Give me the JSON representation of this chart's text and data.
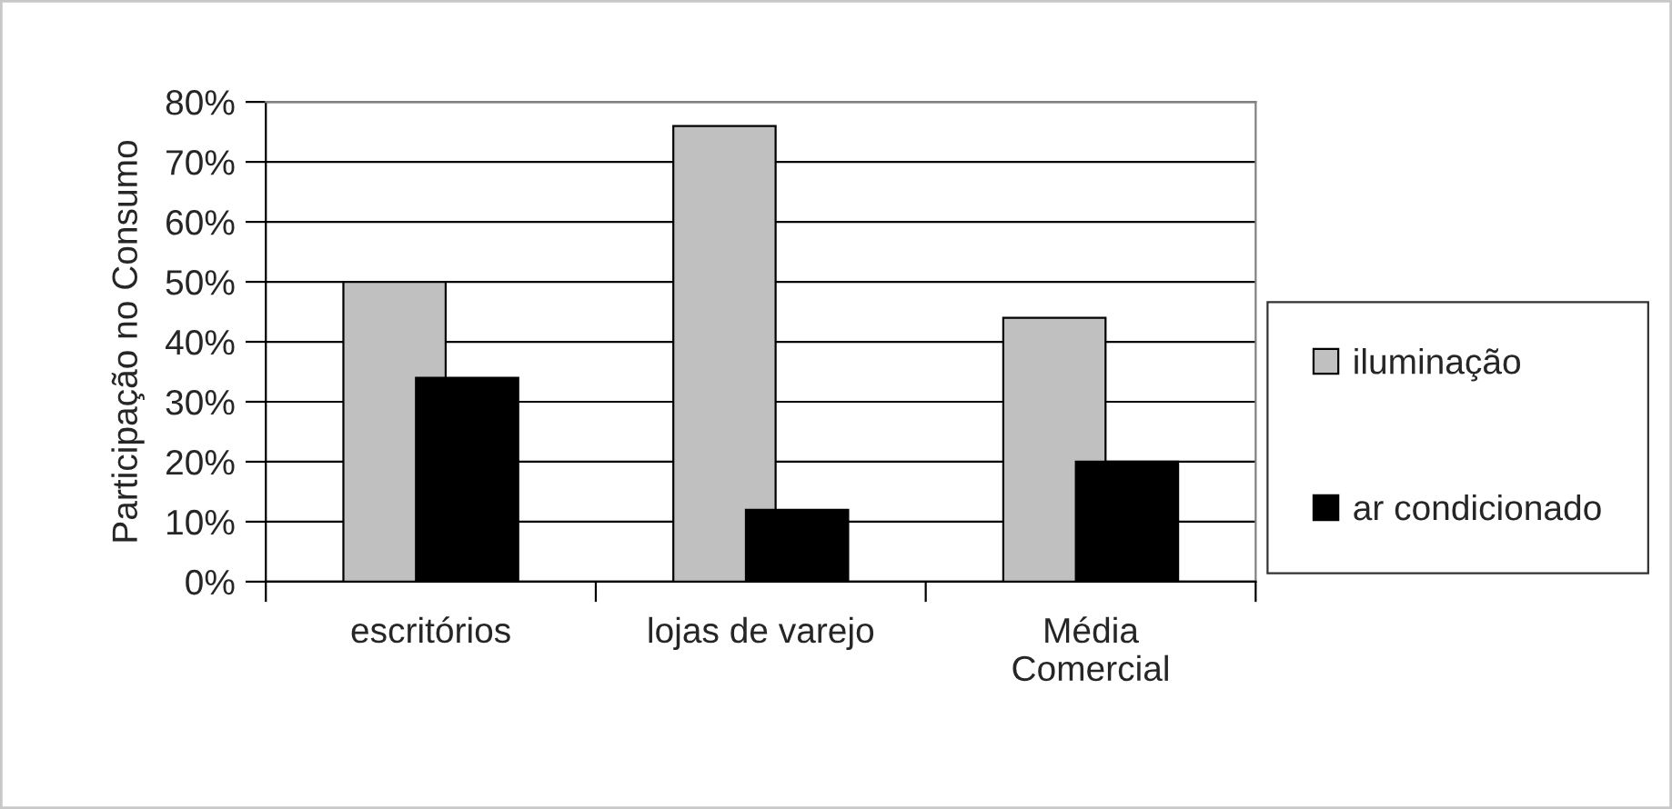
{
  "chart_data": {
    "type": "bar",
    "ylabel": "Participação no Consumo",
    "categories": [
      "escritórios",
      "lojas de varejo",
      "Média\nComercial"
    ],
    "series": [
      {
        "name": "iluminação",
        "color": "#c0c0c0",
        "values": [
          50,
          76,
          44
        ]
      },
      {
        "name": "ar condicionado",
        "color": "#000000",
        "values": [
          34,
          12,
          20
        ]
      }
    ],
    "ylim": [
      0,
      80
    ],
    "yticks": [
      {
        "value": 0,
        "label": "0%"
      },
      {
        "value": 10,
        "label": "10%"
      },
      {
        "value": 20,
        "label": "20%"
      },
      {
        "value": 30,
        "label": "30%"
      },
      {
        "value": 40,
        "label": "40%"
      },
      {
        "value": 50,
        "label": "50%"
      },
      {
        "value": 60,
        "label": "60%"
      },
      {
        "value": 70,
        "label": "70%"
      },
      {
        "value": 80,
        "label": "80%"
      }
    ],
    "grid": "y",
    "legend": "right"
  }
}
